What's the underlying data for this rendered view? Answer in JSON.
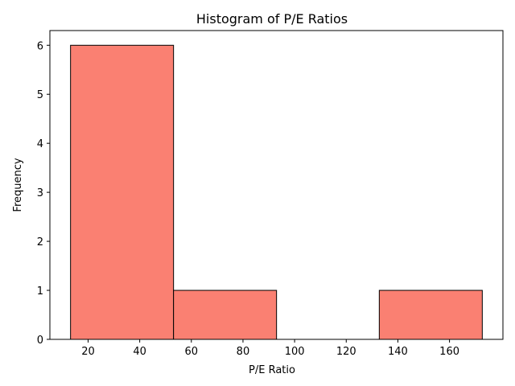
{
  "chart_data": {
    "type": "bar",
    "title": "Histogram of P/E Ratios",
    "xlabel": "P/E Ratio",
    "ylabel": "Frequency",
    "bins": [
      {
        "start": 13.2,
        "end": 53.1,
        "count": 6
      },
      {
        "start": 53.1,
        "end": 93.0,
        "count": 1
      },
      {
        "start": 93.0,
        "end": 132.8,
        "count": 0
      },
      {
        "start": 132.8,
        "end": 172.7,
        "count": 1
      }
    ],
    "xlim": [
      5.2,
      180.7
    ],
    "ylim": [
      0,
      6.3
    ],
    "xticks": [
      20,
      40,
      60,
      80,
      100,
      120,
      140,
      160
    ],
    "yticks": [
      0,
      1,
      2,
      3,
      4,
      5,
      6
    ],
    "bar_color": "#fa8072",
    "edge_color": "#000000",
    "grid": false
  }
}
